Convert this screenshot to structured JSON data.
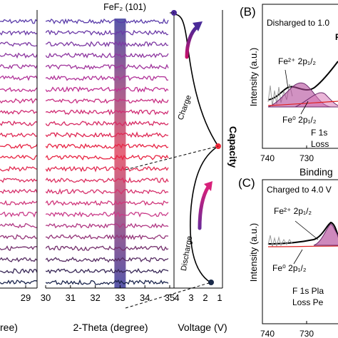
{
  "xrd_left": {
    "type": "line",
    "xticks": [
      "29"
    ],
    "xlabel_fragment": "ree)",
    "n_traces": 24
  },
  "xrd_main": {
    "type": "line",
    "title": "FeF₂ (101)",
    "highlight_x": 33,
    "xlabel": "2-Theta (degree)",
    "xticks": [
      "30",
      "31",
      "32",
      "33",
      "34",
      "35"
    ],
    "xlim": [
      30,
      35
    ],
    "n_traces": 24
  },
  "voltage_profile": {
    "xticks": [
      "4",
      "3",
      "2",
      "1"
    ],
    "xlim": [
      4,
      1
    ],
    "xlabel": "Voltage (V)",
    "ylabel": "Capacity",
    "charge_label": "Charge",
    "discharge_label": "Discharge"
  },
  "xps_b": {
    "panel_label": "(B)",
    "annotation": "Disharged to 1.0",
    "ylabel": "Intensity (a.u.)",
    "xlabel": "Binding",
    "peak_fe2": "Fe²⁺ 2p₁/₂",
    "peak_fe0": "Fe⁰ 2p₁/₂",
    "loss_line1": "F 1s",
    "loss_line2": "Loss",
    "xticks": [
      "740",
      "730"
    ]
  },
  "xps_c": {
    "panel_label": "(C)",
    "annotation": "Charged to 4.0 V",
    "ylabel": "Intensity (a.u.)",
    "xlabel": "Binding",
    "peak_fe2": "Fe²⁺ 2p₁/₂",
    "peak_fe0": "Fe⁰ 2p₁/₂",
    "loss_line1": "F 1s Pla",
    "loss_line2": "Loss Pe",
    "xticks": [
      "740",
      "730"
    ]
  },
  "chart_data": [
    {
      "type": "line",
      "title": "FeF₂ (101)",
      "xlabel": "2-Theta (degree)",
      "xlim": [
        30,
        35
      ],
      "highlight": {
        "x": 33
      }
    },
    {
      "type": "line",
      "xlabel": "Voltage (V)",
      "ylabel": "Capacity",
      "xlim": [
        4,
        1
      ]
    },
    {
      "type": "line",
      "ylabel": "Intensity (a.u.)",
      "xlabel": "Binding",
      "ticks": [
        740,
        730
      ]
    }
  ]
}
